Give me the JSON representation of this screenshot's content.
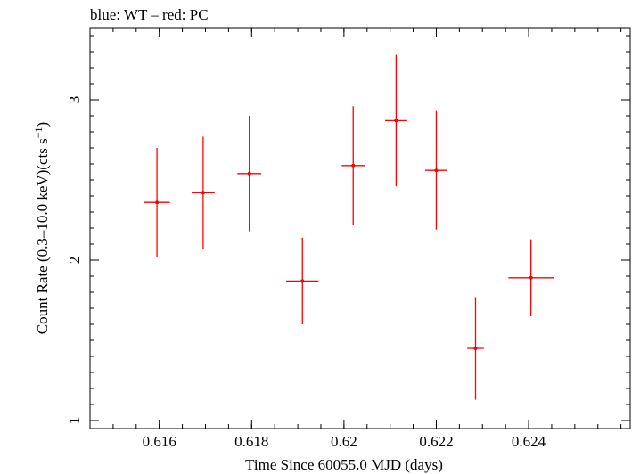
{
  "chart_data": {
    "type": "scatter",
    "title": "blue: WT – red: PC",
    "xlabel": "Time Since 60055.0 MJD (days)",
    "ylabel": "Count Rate (0.3–10.0 keV)(cts s",
    "ylabel_superscript": "−1",
    "ylabel_suffix": ")",
    "xlim": [
      0.6145,
      0.6262
    ],
    "ylim": [
      0.95,
      3.45
    ],
    "x_ticks": [
      0.616,
      0.618,
      0.62,
      0.622,
      0.624
    ],
    "x_tick_labels": [
      "0.616",
      "0.618",
      "0.62",
      "0.622",
      "0.624"
    ],
    "x_minor_step": 0.0005,
    "y_ticks": [
      1,
      2,
      3
    ],
    "y_tick_labels": [
      "1",
      "2",
      "3"
    ],
    "y_minor_step": 0.1,
    "grid": false,
    "colors": {
      "PC": "#ff0000",
      "axes": "#000000"
    },
    "series": [
      {
        "name": "PC",
        "x": [
          0.61595,
          0.61695,
          0.61795,
          0.6191,
          0.6202,
          0.62113,
          0.622,
          0.62285,
          0.62405
        ],
        "x_err": [
          0.00028,
          0.00025,
          0.00026,
          0.00035,
          0.00025,
          0.00024,
          0.00024,
          0.00018,
          0.00049
        ],
        "y": [
          2.36,
          2.42,
          2.54,
          1.87,
          2.59,
          2.87,
          2.56,
          1.45,
          1.89
        ],
        "y_err": [
          0.34,
          0.35,
          0.36,
          0.27,
          0.37,
          0.41,
          0.37,
          0.32,
          0.24
        ]
      }
    ]
  }
}
